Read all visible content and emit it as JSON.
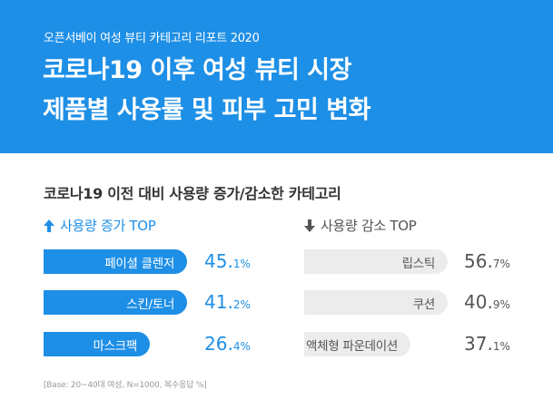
{
  "header": {
    "subtitle": "오픈서베이 여성 뷰티 카테고리 리포트 2020",
    "title_line1": "코로나19 이후 여성 뷰티 시장",
    "title_line2": "제품별 사용률 및 피부 고민 변화"
  },
  "section_title": "코로나19 이전 대비 사용량 증가/감소한 카테고리",
  "increase": {
    "label": "사용량 증가 TOP",
    "items": [
      {
        "name": "페이셜 클렌저",
        "value_int": "45.",
        "value_dec": "1%",
        "value": 45.1
      },
      {
        "name": "스킨/토너",
        "value_int": "41.",
        "value_dec": "2%",
        "value": 41.2
      },
      {
        "name": "마스크팩",
        "value_int": "26.",
        "value_dec": "4%",
        "value": 26.4
      }
    ]
  },
  "decrease": {
    "label": "사용량 감소 TOP",
    "items": [
      {
        "name": "립스틱",
        "value_int": "56.",
        "value_dec": "7%",
        "value": 56.7
      },
      {
        "name": "쿠션",
        "value_int": "40.",
        "value_dec": "9%",
        "value": 40.9
      },
      {
        "name": "액체형 파운데이션",
        "value_int": "37.",
        "value_dec": "1%",
        "value": 37.1
      }
    ]
  },
  "footnote": "[Base: 20~40대 여성, N=1000, 복수응답 %]",
  "colors": {
    "accent": "#1e8fe6",
    "muted_bar": "#ececec",
    "text_dark": "#333333"
  },
  "icons": {
    "increase": "arrow-up-icon",
    "decrease": "arrow-down-icon"
  }
}
